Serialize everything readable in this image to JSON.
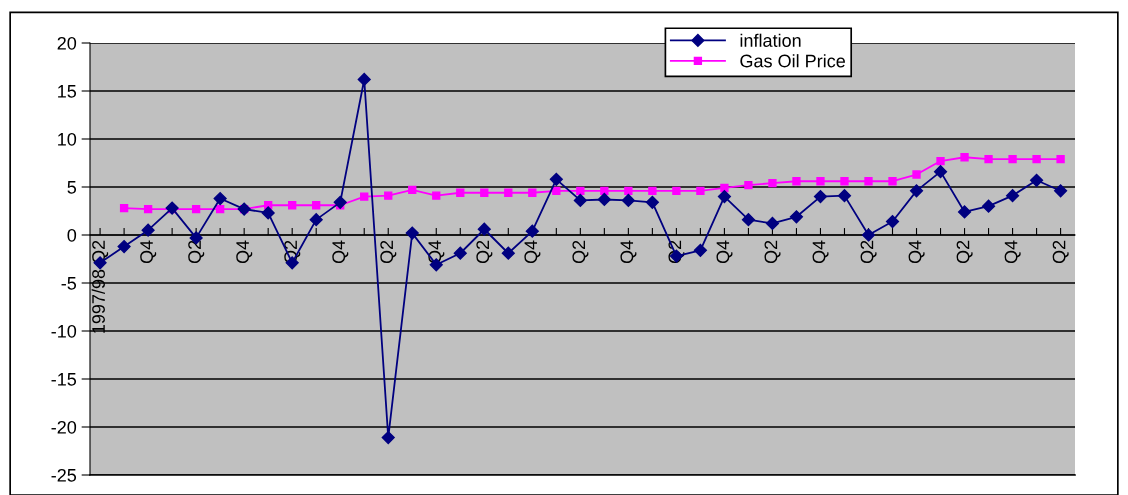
{
  "chart_data": {
    "type": "line",
    "categories": [
      "1997/98 Q2",
      null,
      "Q4",
      null,
      "Q2",
      null,
      "Q4",
      null,
      "Q2",
      null,
      "Q4",
      null,
      "Q2",
      null,
      "Q4",
      null,
      "Q2",
      null,
      "Q4",
      null,
      "Q2",
      null,
      "Q4",
      null,
      "Q2",
      null,
      "Q4",
      null,
      "Q2",
      null,
      "Q4",
      null,
      "Q2",
      null,
      "Q4",
      null,
      "Q2",
      null,
      "Q4",
      null,
      "Q2"
    ],
    "series": [
      {
        "name": "inflation",
        "color": "#000080",
        "marker": "diamond",
        "values": [
          -2.9,
          -1.2,
          0.5,
          2.8,
          -0.3,
          3.8,
          2.7,
          2.3,
          -2.9,
          1.6,
          3.4,
          16.2,
          -21.1,
          0.2,
          -3.1,
          -1.9,
          0.6,
          -1.9,
          0.4,
          5.8,
          3.6,
          3.7,
          3.6,
          3.4,
          -2.2,
          -1.6,
          4.0,
          1.6,
          1.2,
          1.9,
          4.0,
          4.1,
          0.0,
          1.4,
          4.6,
          6.6,
          2.4,
          3.0,
          4.1,
          5.7,
          4.6
        ]
      },
      {
        "name": "Gas Oil Price",
        "color": "#ff00ff",
        "marker": "square",
        "values": [
          null,
          2.8,
          2.7,
          2.7,
          2.7,
          2.7,
          2.7,
          3.1,
          3.1,
          3.1,
          3.1,
          4.0,
          4.1,
          4.7,
          4.1,
          4.4,
          4.4,
          4.4,
          4.4,
          4.6,
          4.6,
          4.6,
          4.6,
          4.6,
          4.6,
          4.6,
          4.9,
          5.2,
          5.4,
          5.6,
          5.6,
          5.6,
          5.6,
          5.6,
          6.3,
          7.7,
          8.1,
          7.9,
          7.9,
          7.9,
          7.9
        ]
      }
    ],
    "ylim": [
      -25,
      20
    ],
    "yticks": [
      -25,
      -20,
      -15,
      -10,
      -5,
      0,
      5,
      10,
      15,
      20
    ],
    "grid": "y",
    "legend": "top right",
    "line_style": "solid"
  }
}
